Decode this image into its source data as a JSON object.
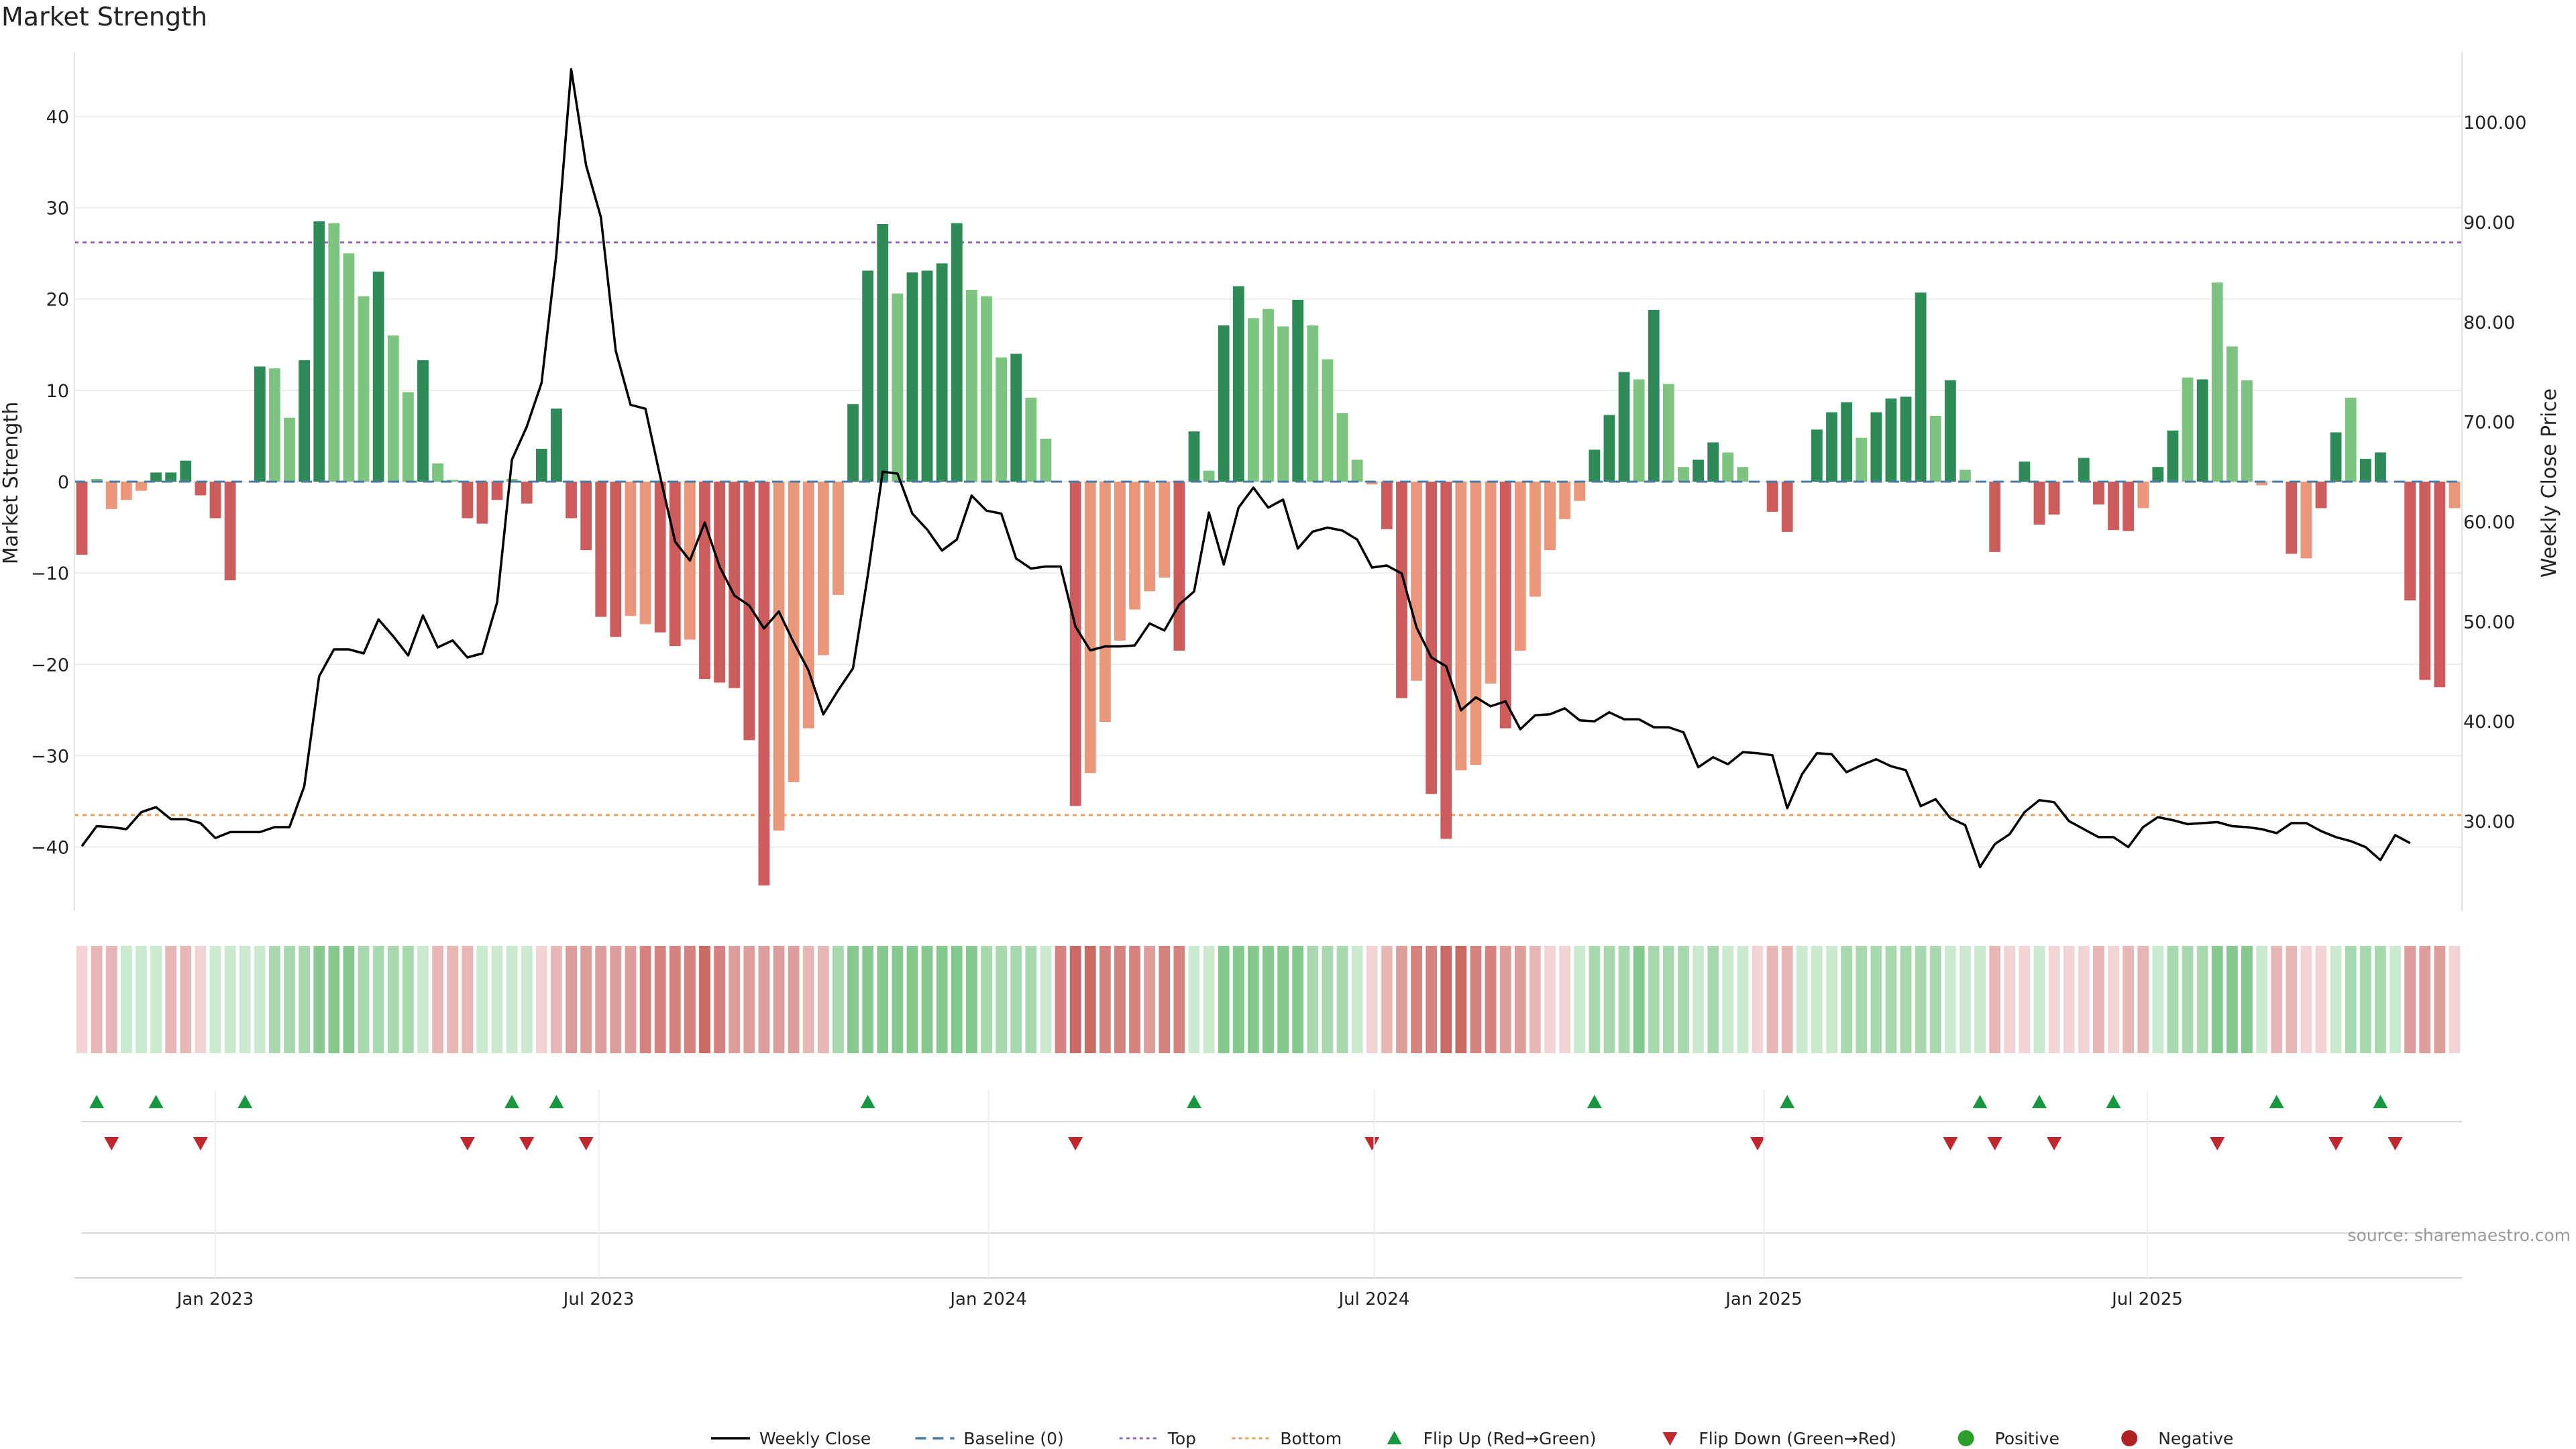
{
  "chart_data": {
    "type": "bar",
    "title": "Market Strength",
    "ylabel": "Market Strength",
    "y2label": "Weekly Close Price",
    "ylim": [
      -47,
      47
    ],
    "y2lim": [
      21,
      107
    ],
    "yticks": [
      -40,
      -30,
      -20,
      -10,
      0,
      10,
      20,
      30,
      40
    ],
    "y2ticks": [
      30,
      40,
      50,
      60,
      70,
      80,
      90,
      100
    ],
    "x_start": "2022-10-30",
    "x_interval_days": 7,
    "x_tick_labels": [
      {
        "date": "2023-01-01",
        "label": "Jan 2023"
      },
      {
        "date": "2023-07-01",
        "label": "Jul 2023"
      },
      {
        "date": "2024-01-01",
        "label": "Jan 2024"
      },
      {
        "date": "2024-07-01",
        "label": "Jul 2024"
      },
      {
        "date": "2025-01-01",
        "label": "Jan 2025"
      },
      {
        "date": "2025-07-01",
        "label": "Jul 2025"
      }
    ],
    "top_threshold": 26.2,
    "bottom_threshold": -36.5,
    "source_note": "source: sharemaestro.com",
    "colors": {
      "pos_strong": "#2e8b57",
      "pos_light": "#7cc47f",
      "neg_strong": "#cd5c5c",
      "neg_light": "#e9967a",
      "price": "#000000",
      "baseline": "#4b7ba0",
      "top": "#9467bd",
      "bottom": "#e8a060",
      "flip_up": "#1a9641",
      "flip_down": "#c0282d",
      "positive_dot": "#2ca02c",
      "negative_dot": "#b22222"
    },
    "strength": [
      -8,
      0.3,
      -3,
      -2,
      -1,
      1,
      1,
      2.3,
      -1.5,
      -4,
      -10.8,
      0,
      12.6,
      12.4,
      7,
      13.3,
      28.5,
      28.3,
      25,
      20.3,
      23,
      16,
      9.8,
      13.3,
      2,
      0.2,
      -4,
      -4.6,
      -2,
      0.3,
      -2.4,
      3.6,
      8,
      -4,
      -7.5,
      -14.8,
      -17,
      -14.7,
      -15.6,
      -16.5,
      -18,
      -17.3,
      -21.6,
      -22,
      -22.6,
      -28.3,
      -44.2,
      -38.2,
      -32.9,
      -27,
      -19,
      -12.4,
      8.5,
      23.1,
      28.2,
      20.6,
      22.9,
      23.1,
      23.9,
      28.3,
      21,
      20.3,
      13.6,
      14,
      9.2,
      4.7,
      0,
      -35.5,
      -31.9,
      -26.3,
      -17.4,
      -14,
      -12,
      -10.5,
      -18.5,
      5.5,
      1.2,
      17.1,
      21.4,
      17.9,
      18.9,
      17,
      19.9,
      17.1,
      13.4,
      7.5,
      2.4,
      -0.3,
      -5.2,
      -23.7,
      -21.8,
      -34.2,
      -39.1,
      -31.6,
      -31,
      -22.1,
      -27,
      -18.5,
      -12.6,
      -7.5,
      -4.1,
      -2.1,
      3.5,
      7.3,
      12,
      11.2,
      18.8,
      10.7,
      1.6,
      2.4,
      4.3,
      3.2,
      1.6,
      0,
      -3.3,
      -5.5,
      0,
      5.7,
      7.6,
      8.7,
      4.8,
      7.6,
      9.1,
      9.3,
      20.7,
      7.2,
      11.1,
      1.3,
      0,
      -7.7,
      0,
      2.2,
      -4.7,
      -3.6,
      0,
      2.6,
      -2.5,
      -5.3,
      -5.4,
      -2.9,
      1.6,
      5.6,
      11.4,
      11.2,
      21.8,
      14.8,
      11.1,
      -0.4,
      0,
      -7.9,
      -8.4,
      -2.9,
      5.4,
      9.2,
      2.5,
      3.2,
      0,
      -13,
      -21.7,
      -22.5,
      -2.9
    ],
    "strength_tone": [
      1,
      0,
      0,
      0,
      0,
      1,
      1,
      1,
      1,
      1,
      1,
      0,
      1,
      0,
      0,
      1,
      1,
      0,
      0,
      0,
      1,
      0,
      0,
      1,
      0,
      0,
      1,
      1,
      1,
      0,
      1,
      1,
      1,
      1,
      1,
      1,
      1,
      0,
      0,
      1,
      1,
      0,
      1,
      1,
      1,
      1,
      1,
      0,
      0,
      0,
      0,
      0,
      1,
      1,
      1,
      0,
      1,
      1,
      1,
      1,
      0,
      0,
      0,
      1,
      0,
      0,
      0,
      1,
      0,
      0,
      0,
      0,
      0,
      0,
      1,
      1,
      0,
      1,
      1,
      0,
      0,
      0,
      1,
      0,
      0,
      0,
      0,
      0,
      1,
      1,
      0,
      1,
      1,
      0,
      0,
      0,
      1,
      0,
      0,
      0,
      0,
      0,
      1,
      1,
      1,
      0,
      1,
      0,
      0,
      1,
      1,
      0,
      0,
      0,
      1,
      1,
      0,
      1,
      1,
      1,
      0,
      1,
      1,
      1,
      1,
      0,
      1,
      0,
      0,
      1,
      0,
      1,
      1,
      1,
      0,
      1,
      1,
      1,
      1,
      0,
      1,
      1,
      0,
      1,
      0,
      0,
      0,
      0,
      1,
      1,
      0,
      1,
      1,
      0,
      1,
      1,
      1,
      1,
      1,
      1
    ],
    "weekly_close": [
      27.5,
      29.5,
      29.4,
      29.2,
      30.9,
      31.4,
      30.2,
      30.2,
      29.8,
      28.3,
      28.9,
      28.9,
      28.9,
      29.4,
      29.4,
      33.5,
      44.5,
      47.2,
      47.2,
      46.8,
      50.2,
      48.5,
      46.6,
      50.6,
      47.4,
      48.1,
      46.4,
      46.8,
      51.9,
      66.2,
      69.5,
      73.9,
      86.8,
      105.3,
      95.7,
      90.5,
      77.1,
      71.7,
      71.3,
      64.5,
      58,
      56.1,
      59.9,
      55.5,
      52.6,
      51.6,
      49.3,
      51,
      47.9,
      45.1,
      40.7,
      43.1,
      45.3,
      54.6,
      65,
      64.8,
      60.8,
      59.2,
      57.1,
      58.2,
      62.6,
      61.1,
      60.8,
      56.3,
      55.3,
      55.5,
      55.5,
      49.5,
      47.1,
      47.5,
      47.5,
      47.6,
      49.8,
      49.1,
      51.7,
      53,
      60.9,
      55.7,
      61.4,
      63.4,
      61.4,
      62.2,
      57.3,
      59,
      59.4,
      59.1,
      58.2,
      55.4,
      55.6,
      54.8,
      49.4,
      46.4,
      45.5,
      41.1,
      42.4,
      41.5,
      42,
      39.2,
      40.6,
      40.7,
      41.3,
      40.1,
      40,
      40.9,
      40.2,
      40.2,
      39.4,
      39.4,
      38.9,
      35.4,
      36.4,
      35.7,
      36.9,
      36.8,
      36.6,
      31.3,
      34.7,
      36.8,
      36.7,
      34.9,
      35.6,
      36.2,
      35.5,
      35.1,
      31.5,
      32.2,
      30.3,
      29.6,
      25.4,
      27.7,
      28.7,
      30.9,
      32.1,
      31.9,
      30,
      29.2,
      28.4,
      28.4,
      27.4,
      29.4,
      30.4,
      30.1,
      29.7,
      29.8,
      29.9,
      29.5,
      29.4,
      29.2,
      28.8,
      29.8,
      29.8,
      29,
      28.4,
      28,
      27.4,
      26.1,
      28.6,
      27.8
    ],
    "bands": [
      -1,
      -2,
      -2,
      1,
      1,
      1,
      -2,
      -2,
      -1,
      1,
      1,
      1,
      1,
      2,
      2,
      2,
      3,
      3,
      3,
      2,
      2,
      2,
      2,
      1,
      -2,
      -2,
      -2,
      1,
      1,
      1,
      1,
      -1,
      -2,
      -3,
      -3,
      -3,
      -3,
      -3,
      -4,
      -4,
      -4,
      -4,
      -5,
      -4,
      -3,
      -3,
      -3,
      -3,
      -3,
      -2,
      -2,
      2,
      3,
      3,
      3,
      3,
      3,
      3,
      3,
      3,
      3,
      2,
      2,
      2,
      2,
      1,
      -4,
      -5,
      -5,
      -4,
      -4,
      -4,
      -3,
      -4,
      -4,
      1,
      1,
      3,
      3,
      3,
      3,
      3,
      3,
      2,
      2,
      2,
      1,
      -1,
      -2,
      -3,
      -4,
      -4,
      -5,
      -5,
      -4,
      -4,
      -3,
      -3,
      -2,
      -1,
      -1,
      1,
      2,
      2,
      2,
      3,
      2,
      2,
      2,
      1,
      2,
      1,
      1,
      -1,
      -2,
      -2,
      1,
      1,
      1,
      2,
      2,
      2,
      2,
      2,
      2,
      2,
      1,
      1,
      1,
      -2,
      -1,
      -1,
      1,
      -1,
      -1,
      -1,
      -2,
      -1,
      -2,
      -2,
      1,
      2,
      2,
      2,
      3,
      3,
      3,
      1,
      -2,
      -2,
      -1,
      -1,
      1,
      2,
      2,
      2,
      1,
      -3,
      -3,
      -3,
      -1
    ],
    "flip_up_weeks": [
      1,
      5,
      11,
      29,
      32,
      53,
      75,
      102,
      115,
      128,
      132,
      137,
      148,
      155
    ],
    "flip_down_weeks": [
      2,
      8,
      26,
      30,
      34,
      67,
      87,
      113,
      126,
      129,
      133,
      144,
      152,
      156
    ],
    "legend": [
      {
        "key": "close",
        "label": "Weekly Close",
        "symbol": "line"
      },
      {
        "key": "baseline",
        "label": "Baseline (0)",
        "symbol": "dash"
      },
      {
        "key": "top",
        "label": "Top",
        "symbol": "dot-line"
      },
      {
        "key": "bottom",
        "label": "Bottom",
        "symbol": "dot-line"
      },
      {
        "key": "flip_up",
        "label": "Flip Up (Red→Green)",
        "symbol": "tri-up"
      },
      {
        "key": "flip_down",
        "label": "Flip Down (Green→Red)",
        "symbol": "tri-down"
      },
      {
        "key": "positive",
        "label": "Positive",
        "symbol": "dot"
      },
      {
        "key": "negative",
        "label": "Negative",
        "symbol": "dot"
      }
    ]
  }
}
